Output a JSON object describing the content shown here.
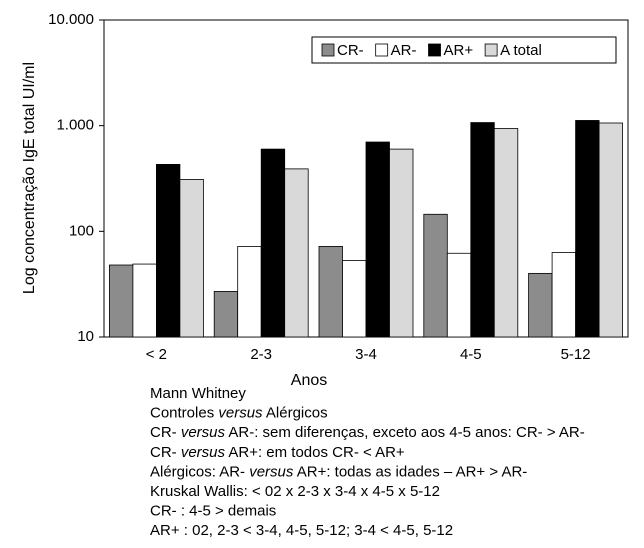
{
  "chart_data": {
    "type": "bar",
    "y_label": "Log concentração IgE total UI/ml",
    "x_label": "Anos",
    "categories": [
      "< 2",
      "2-3",
      "3-4",
      "4-5",
      "5-12"
    ],
    "series": [
      {
        "name": "CR-",
        "color": "#8c8c8c",
        "values": [
          48,
          27,
          72,
          145,
          40
        ]
      },
      {
        "name": "AR-",
        "color": "#ffffff",
        "values": [
          49,
          72,
          53,
          62,
          63
        ]
      },
      {
        "name": "AR+",
        "color": "#000000",
        "values": [
          430,
          600,
          700,
          1070,
          1120
        ]
      },
      {
        "name": "A total",
        "color": "#d9d9d9",
        "values": [
          310,
          390,
          600,
          940,
          1060
        ]
      }
    ],
    "ylim": [
      10,
      10000
    ],
    "yticks": [
      10,
      100,
      {
        "value": 1000,
        "label": "1.000"
      },
      {
        "value": 10000,
        "label": "10.000"
      }
    ],
    "log_scale": true,
    "legend": "top-right"
  },
  "notes": [
    [
      "Mann Whitney"
    ],
    [
      "Controles ",
      "versus",
      " Alérgicos"
    ],
    [
      "CR- ",
      "versus",
      " AR-: sem diferenças, exceto aos 4-5 anos: CR- > AR-"
    ],
    [
      "CR- ",
      "versus",
      " AR+: em todos CR- < AR+"
    ],
    [
      "Alérgicos: AR- ",
      "versus",
      " AR+: todas as idades – AR+ > AR-"
    ],
    [
      "Kruskal Wallis: < 02 x 2-3 x 3-4 x 4-5 x 5-12"
    ],
    [
      "CR- : 4-5 > demais"
    ],
    [
      "AR+ : 02, 2-3 < 3-4, 4-5, 5-12; 3-4 < 4-5, 5-12"
    ]
  ]
}
